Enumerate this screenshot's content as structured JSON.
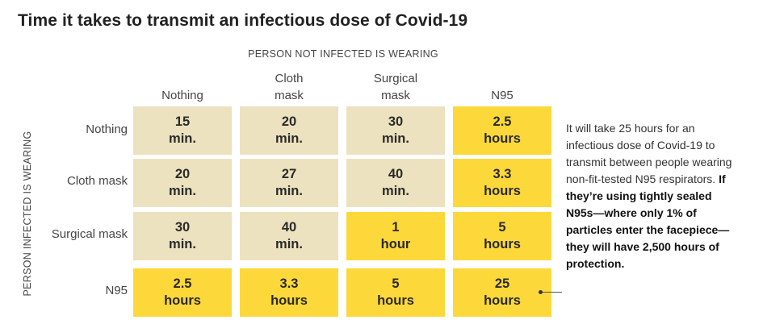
{
  "chart_data": {
    "type": "table",
    "title": "Time it takes to transmit an infectious dose of Covid-19",
    "column_axis_label": "PERSON NOT INFECTED IS WEARING",
    "row_axis_label": "PERSON INFECTED IS WEARING",
    "columns": [
      {
        "line1": "Nothing",
        "line2": ""
      },
      {
        "line1": "Cloth",
        "line2": "mask"
      },
      {
        "line1": "Surgical",
        "line2": "mask"
      },
      {
        "line1": "N95",
        "line2": ""
      }
    ],
    "rows": [
      {
        "label": "Nothing",
        "cells": [
          {
            "value": "15",
            "unit": "min.",
            "highlight": false
          },
          {
            "value": "20",
            "unit": "min.",
            "highlight": false
          },
          {
            "value": "30",
            "unit": "min.",
            "highlight": false
          },
          {
            "value": "2.5",
            "unit": "hours",
            "highlight": true
          }
        ]
      },
      {
        "label": "Cloth mask",
        "cells": [
          {
            "value": "20",
            "unit": "min.",
            "highlight": false
          },
          {
            "value": "27",
            "unit": "min.",
            "highlight": false
          },
          {
            "value": "40",
            "unit": "min.",
            "highlight": false
          },
          {
            "value": "3.3",
            "unit": "hours",
            "highlight": true
          }
        ]
      },
      {
        "label": "Surgical mask",
        "cells": [
          {
            "value": "30",
            "unit": "min.",
            "highlight": false
          },
          {
            "value": "40",
            "unit": "min.",
            "highlight": false
          },
          {
            "value": "1",
            "unit": "hour",
            "highlight": true
          },
          {
            "value": "5",
            "unit": "hours",
            "highlight": true
          }
        ]
      },
      {
        "label": "N95",
        "cells": [
          {
            "value": "2.5",
            "unit": "hours",
            "highlight": true
          },
          {
            "value": "3.3",
            "unit": "hours",
            "highlight": true
          },
          {
            "value": "5",
            "unit": "hours",
            "highlight": true
          },
          {
            "value": "25",
            "unit": "hours",
            "highlight": true
          }
        ]
      }
    ],
    "annotation": {
      "plain": "It will take 25 hours for an infectious dose of Covid-19 to transmit between people wearing non-fit-tested N95 respirators.",
      "bold": "If they’re using tightly sealed N95s—where only 1% of particles enter the facepiece—they will have 2,500 hours of protection."
    },
    "colors": {
      "highlight": "#fdd83a",
      "base": "#ede2bf"
    }
  }
}
